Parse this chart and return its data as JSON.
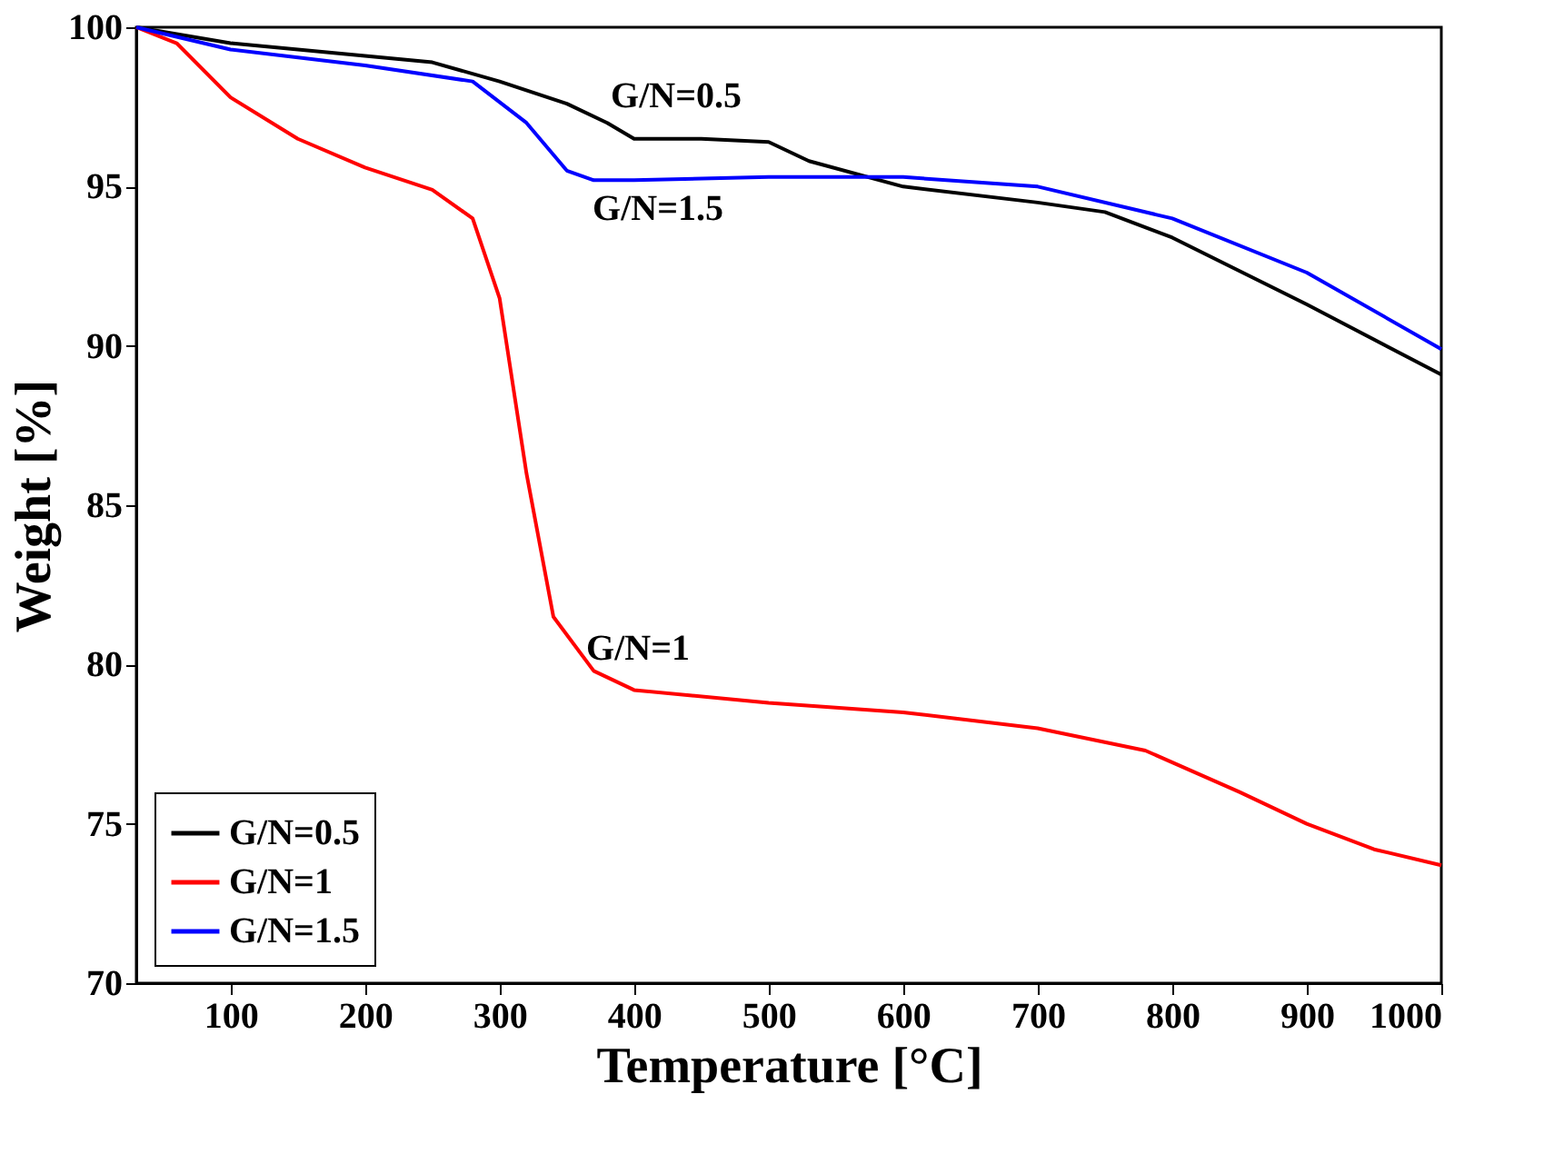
{
  "chart_data": {
    "type": "line",
    "xlabel": "Temperature [°C]",
    "ylabel": "Weight [%]",
    "xlim": [
      30,
      1000
    ],
    "xticks": [
      100,
      200,
      300,
      400,
      500,
      600,
      700,
      800,
      900,
      {
        "value": 1000,
        "label": "1000"
      }
    ],
    "ylim": [
      70,
      100
    ],
    "yticks": [
      70,
      75,
      80,
      85,
      90,
      95,
      100
    ],
    "legend": "bottom left",
    "grid": false,
    "marker": "none",
    "line_style": "solid",
    "annotations": [
      "G/N=0.5",
      "G/N=1.5",
      "G/N=1"
    ],
    "series": [
      {
        "name": "G/N=0.5",
        "color": "#000000",
        "x": [
          30,
          100,
          200,
          250,
          300,
          350,
          380,
          400,
          450,
          500,
          530,
          600,
          700,
          750,
          800,
          900,
          1000
        ],
        "values": [
          100,
          99.5,
          99.1,
          98.9,
          98.3,
          97.6,
          97.0,
          96.5,
          96.5,
          96.4,
          95.8,
          95.0,
          94.5,
          94.2,
          93.4,
          91.3,
          89.1
        ]
      },
      {
        "name": "G/N=1",
        "color": "#ff0000",
        "x": [
          30,
          60,
          100,
          150,
          200,
          250,
          280,
          300,
          320,
          340,
          370,
          400,
          500,
          600,
          700,
          780,
          850,
          900,
          950,
          1000
        ],
        "values": [
          100,
          99.5,
          97.8,
          96.5,
          95.6,
          94.9,
          94.0,
          91.5,
          86.0,
          81.5,
          79.8,
          79.2,
          78.8,
          78.5,
          78.0,
          77.3,
          76.0,
          75.0,
          74.2,
          73.7
        ]
      },
      {
        "name": "G/N=1.5",
        "color": "#0000ff",
        "x": [
          30,
          100,
          200,
          280,
          320,
          350,
          370,
          400,
          500,
          600,
          700,
          800,
          900,
          1000
        ],
        "values": [
          100,
          99.3,
          98.8,
          98.3,
          97.0,
          95.5,
          95.2,
          95.2,
          95.3,
          95.3,
          95.0,
          94.0,
          92.3,
          89.9
        ]
      }
    ]
  }
}
